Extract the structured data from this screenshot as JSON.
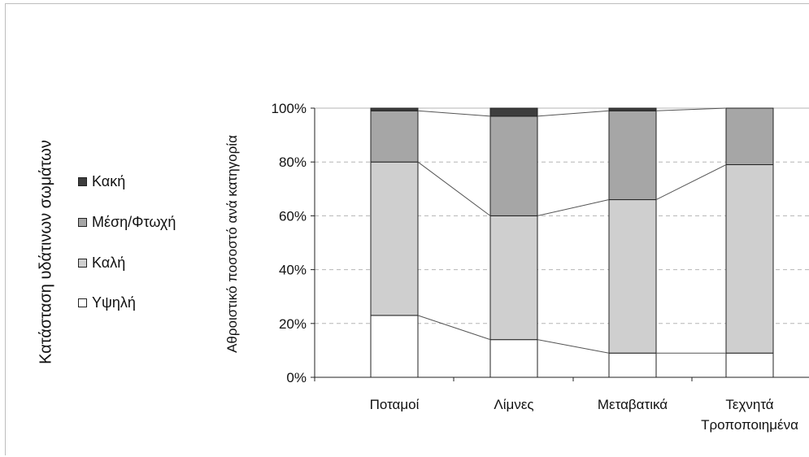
{
  "legend": {
    "title": "Κατάσταση υδάτινων σωμάτων",
    "items": [
      {
        "label": "Κακή",
        "color": "#3d3d3d"
      },
      {
        "label": "Μέση/Φτωχή",
        "color": "#a6a6a6"
      },
      {
        "label": "Καλή",
        "color": "#cfcfcf"
      },
      {
        "label": "Υψηλή",
        "color": "#ffffff"
      }
    ]
  },
  "chart_data": {
    "type": "bar",
    "stacked": true,
    "title": "",
    "xlabel": "",
    "ylabel": "Αθροιστικό ποσοστό ανά κατηγορία",
    "ylim": [
      0,
      100
    ],
    "yticks": [
      "0%",
      "20%",
      "40%",
      "60%",
      "80%",
      "100%"
    ],
    "grid": "horizontal-dashed",
    "legend_position": "left",
    "categories": [
      "Ποταμοί",
      "Λίμνες",
      "Μεταβατικά",
      "Τεχνητά Τροποποιημένα"
    ],
    "category_labels": [
      [
        "Ποταμοί"
      ],
      [
        "Λίμνες"
      ],
      [
        "Μεταβατικά"
      ],
      [
        "Τεχνητά",
        "Τροποποιημένα"
      ]
    ],
    "series": [
      {
        "name": "Υψηλή",
        "color": "#ffffff",
        "values": [
          23,
          14,
          9,
          9
        ]
      },
      {
        "name": "Καλή",
        "color": "#cfcfcf",
        "values": [
          57,
          46,
          57,
          70
        ]
      },
      {
        "name": "Μέση/Φτωχή",
        "color": "#a6a6a6",
        "values": [
          19,
          37,
          33,
          21
        ]
      },
      {
        "name": "Κακή",
        "color": "#3d3d3d",
        "values": [
          1,
          3,
          1,
          0
        ]
      }
    ]
  }
}
